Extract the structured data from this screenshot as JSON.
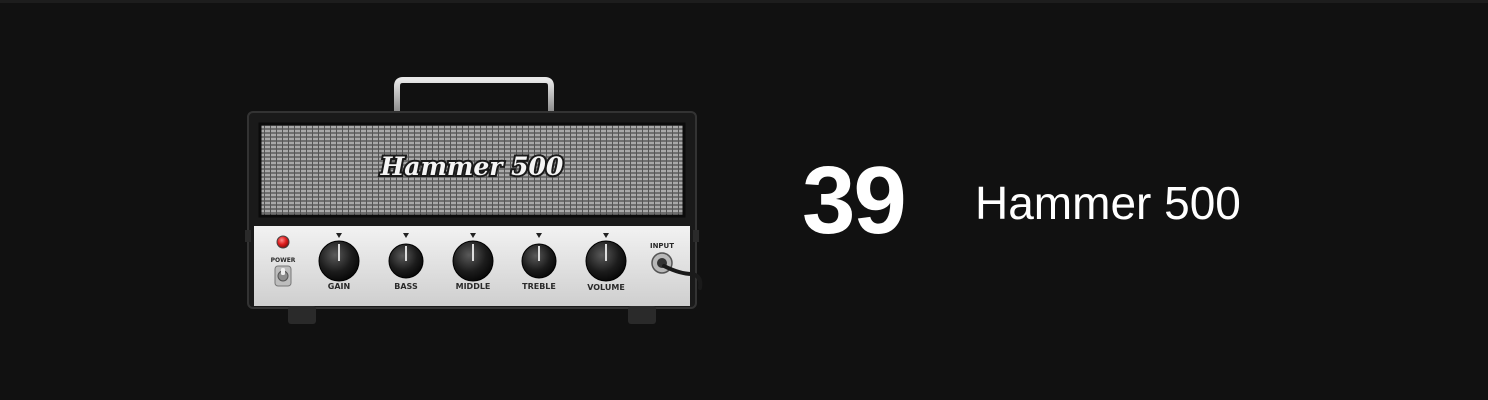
{
  "item": {
    "number": "39",
    "name": "Hammer 500"
  },
  "amp": {
    "brand": "Hammer 500",
    "power_label": "POWER",
    "input_label": "INPUT",
    "knobs": [
      "GAIN",
      "BASS",
      "MIDDLE",
      "TREBLE",
      "VOLUME"
    ]
  },
  "colors": {
    "background": "#111111",
    "text": "#ffffff",
    "power_led": "#e02020"
  }
}
